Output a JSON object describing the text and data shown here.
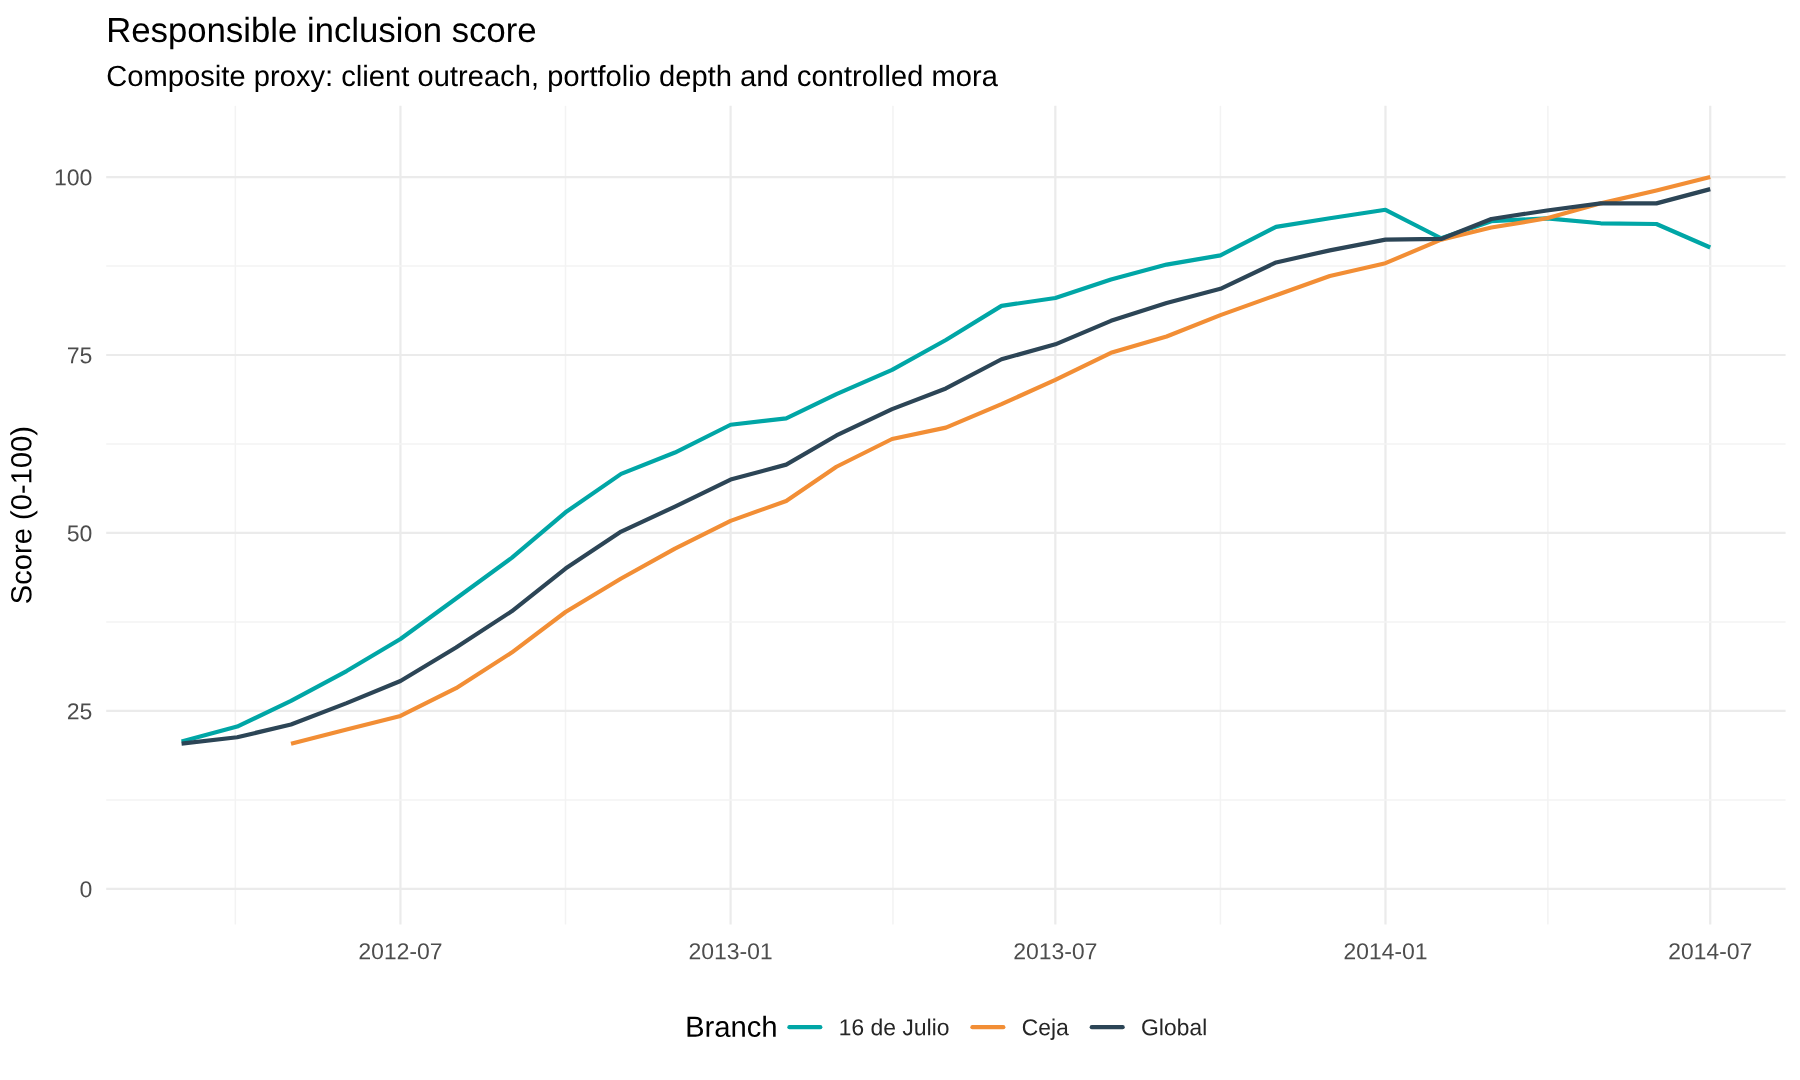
{
  "chart_data": {
    "type": "line",
    "title": "Responsible inclusion score",
    "subtitle": "Composite proxy: client outreach, portfolio depth and controlled mora",
    "ylabel": "Score (0-100)",
    "legend_title": "Branch",
    "x": [
      "2012-03",
      "2012-04",
      "2012-05",
      "2012-06",
      "2012-07",
      "2012-08",
      "2012-09",
      "2012-10",
      "2012-11",
      "2012-12",
      "2013-01",
      "2013-02",
      "2013-03",
      "2013-04",
      "2013-05",
      "2013-06",
      "2013-07",
      "2013-08",
      "2013-09",
      "2013-10",
      "2013-11",
      "2013-12",
      "2014-01",
      "2014-02",
      "2014-03",
      "2014-04",
      "2014-05",
      "2014-06",
      "2014-07"
    ],
    "series": [
      {
        "name": "16 de Julio",
        "color": "#00a6a6",
        "values": [
          20.7,
          22.8,
          26.4,
          30.6,
          35.1,
          40.8,
          46.5,
          52.9,
          58.3,
          61.3,
          65.2,
          66.1,
          69.5,
          72.9,
          77.1,
          81.9,
          83.0,
          85.6,
          87.7,
          89.0,
          93.0,
          94.2,
          95.4,
          91.4,
          93.8,
          94.2,
          93.5,
          93.4,
          90.1
        ]
      },
      {
        "name": "Ceja",
        "color": "#f28e35",
        "values": [
          null,
          null,
          20.4,
          22.4,
          24.3,
          28.2,
          33.2,
          38.9,
          43.6,
          47.8,
          51.7,
          54.5,
          59.3,
          63.2,
          64.8,
          68.1,
          71.5,
          75.3,
          77.6,
          80.6,
          83.4,
          86.1,
          87.9,
          91.2,
          92.9,
          94.2,
          96.3,
          98.1,
          100.0
        ]
      },
      {
        "name": "Global",
        "color": "#2c4556",
        "values": [
          20.4,
          21.3,
          23.1,
          26.1,
          29.2,
          33.9,
          39.0,
          45.0,
          50.2,
          53.7,
          57.5,
          59.6,
          63.7,
          67.4,
          70.3,
          74.4,
          76.5,
          79.8,
          82.3,
          84.3,
          88.0,
          89.7,
          91.2,
          91.3,
          94.1,
          95.3,
          96.3,
          96.3,
          98.3
        ]
      }
    ],
    "xlim": [
      "2012-01-19",
      "2014-08-12"
    ],
    "xticks": [
      "2012-07",
      "2013-01",
      "2013-07",
      "2014-01",
      "2014-07"
    ],
    "ylim": [
      -5,
      110
    ],
    "yticks": [
      0,
      25,
      50,
      75,
      100
    ],
    "grid": true,
    "legend": "bottom",
    "line_style": "solid"
  }
}
